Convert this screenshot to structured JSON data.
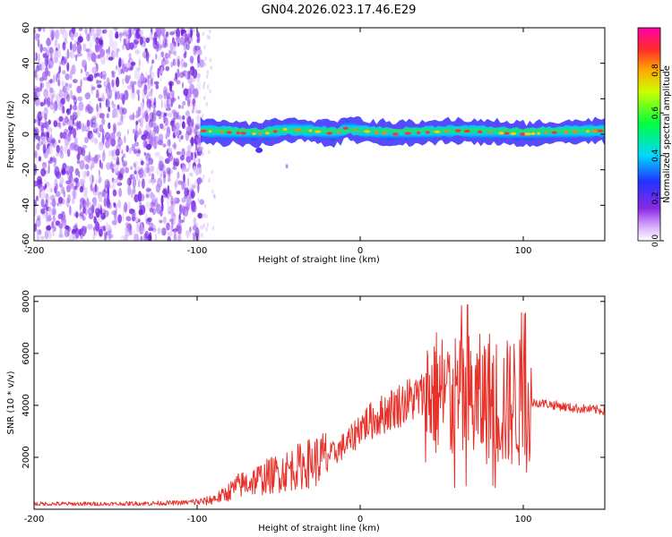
{
  "title": "GN04.2026.023.17.46.E29",
  "colors": {
    "snr_line": "#e8312a",
    "axis": "#000000",
    "noise_purple": "#7a2fe0"
  },
  "chart_data": [
    {
      "type": "heatmap",
      "xlabel": "Height of straight line (km)",
      "ylabel": "Frequency (Hz)",
      "xlim": [
        -200,
        150
      ],
      "ylim": [
        -60,
        60
      ],
      "xticks": [
        -200,
        -100,
        0,
        100
      ],
      "xtick_labels": [
        "-200",
        "-100",
        "0",
        "100"
      ],
      "yticks": [
        60,
        40,
        20,
        0,
        -20,
        -40,
        -60
      ],
      "ytick_labels": [
        "60",
        "40",
        "20",
        "0",
        "-20",
        "-40",
        "-60"
      ],
      "noise_region_x": [
        -200,
        -97
      ],
      "trace_start_x": -98,
      "trace_center_hz": [
        [
          -98,
          2
        ],
        [
          -80,
          1
        ],
        [
          -60,
          0
        ],
        [
          -45,
          3
        ],
        [
          -30,
          2
        ],
        [
          -15,
          0
        ],
        [
          -8,
          4
        ],
        [
          0,
          2
        ],
        [
          20,
          0
        ],
        [
          40,
          1
        ],
        [
          60,
          2
        ],
        [
          80,
          1
        ],
        [
          100,
          0
        ],
        [
          120,
          1
        ],
        [
          150,
          2
        ]
      ],
      "colorbar": {
        "label": "Normalized spectral amplitude",
        "ticks": [
          0.0,
          0.2,
          0.4,
          0.6,
          0.8
        ],
        "tick_labels": [
          "0.0",
          "0.2",
          "0.4",
          "0.6",
          "0.8"
        ],
        "range": [
          0,
          1
        ]
      }
    },
    {
      "type": "line",
      "xlabel": "Height of straight line (km)",
      "ylabel": "SNR (10 * v/v)",
      "xlim": [
        -200,
        150
      ],
      "ylim": [
        0,
        8200
      ],
      "xticks": [
        -200,
        -100,
        0,
        100
      ],
      "xtick_labels": [
        "-200",
        "-100",
        "0",
        "100"
      ],
      "yticks": [
        2000,
        4000,
        6000,
        8000
      ],
      "ytick_labels": [
        "2000",
        "4000",
        "6000",
        "8000"
      ],
      "series": [
        {
          "name": "SNR",
          "x": [
            -200,
            -150,
            -110,
            -95,
            -85,
            -75,
            -65,
            -55,
            -45,
            -35,
            -25,
            -15,
            -5,
            0,
            10,
            20,
            30,
            40,
            45,
            50,
            55,
            60,
            65,
            70,
            75,
            80,
            85,
            90,
            95,
            100,
            105,
            110,
            120,
            130,
            140,
            150
          ],
          "values": [
            200,
            200,
            250,
            300,
            500,
            900,
            1100,
            1300,
            1500,
            1700,
            1900,
            2200,
            2700,
            3200,
            3500,
            3900,
            4200,
            4400,
            4500,
            4400,
            4300,
            4200,
            4300,
            4100,
            4200,
            4400,
            4100,
            4000,
            4200,
            3900,
            4100,
            4100,
            4000,
            3900,
            3850,
            3800
          ]
        }
      ]
    }
  ]
}
